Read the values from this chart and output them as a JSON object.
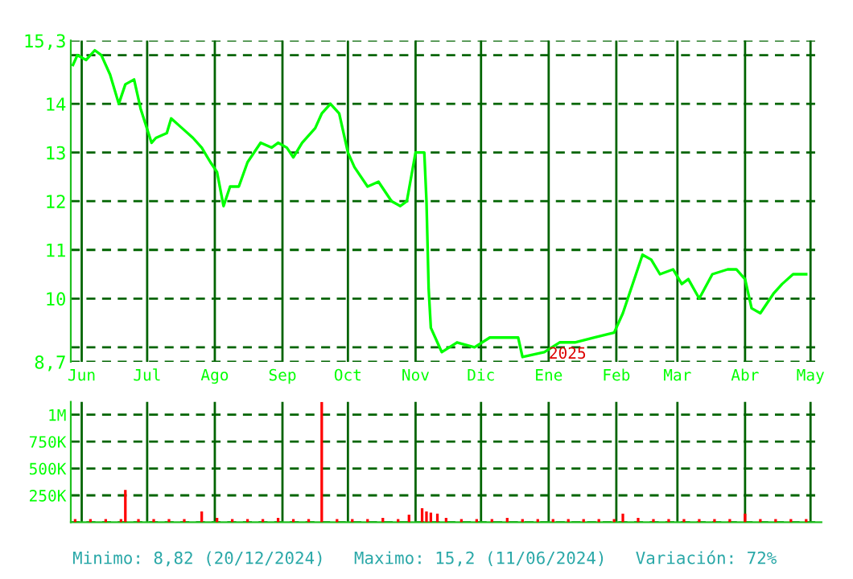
{
  "chart_data": [
    {
      "type": "line",
      "x": [
        "2024-05-28",
        "2024-05-30",
        "2024-06-03",
        "2024-06-07",
        "2024-06-10",
        "2024-06-14",
        "2024-06-18",
        "2024-06-21",
        "2024-06-25",
        "2024-06-28",
        "2024-07-03",
        "2024-07-05",
        "2024-07-10",
        "2024-07-12",
        "2024-07-17",
        "2024-07-22",
        "2024-07-26",
        "2024-07-30",
        "2024-08-02",
        "2024-08-05",
        "2024-08-08",
        "2024-08-12",
        "2024-08-16",
        "2024-08-22",
        "2024-08-27",
        "2024-08-30",
        "2024-09-03",
        "2024-09-06",
        "2024-09-10",
        "2024-09-16",
        "2024-09-19",
        "2024-09-23",
        "2024-09-27",
        "2024-10-01",
        "2024-10-04",
        "2024-10-10",
        "2024-10-15",
        "2024-10-21",
        "2024-10-25",
        "2024-10-28",
        "2024-11-01",
        "2024-11-04",
        "2024-11-05",
        "2024-11-06",
        "2024-11-07",
        "2024-11-08",
        "2024-11-11",
        "2024-11-13",
        "2024-11-20",
        "2024-11-28",
        "2024-12-05",
        "2024-12-11",
        "2024-12-18",
        "2024-12-20",
        "2024-12-30",
        "2025-01-06",
        "2025-01-13",
        "2025-01-22",
        "2025-01-31",
        "2025-02-04",
        "2025-02-10",
        "2025-02-13",
        "2025-02-17",
        "2025-02-21",
        "2025-02-27",
        "2025-03-03",
        "2025-03-06",
        "2025-03-11",
        "2025-03-17",
        "2025-03-24",
        "2025-03-28",
        "2025-04-01",
        "2025-04-04",
        "2025-04-08",
        "2025-04-14",
        "2025-04-18",
        "2025-04-23",
        "2025-04-29"
      ],
      "series": [
        {
          "color": "#00ff00",
          "values": [
            14.8,
            15.0,
            14.9,
            15.1,
            15.0,
            14.6,
            14.0,
            14.4,
            14.5,
            13.9,
            13.2,
            13.3,
            13.4,
            13.7,
            13.5,
            13.3,
            13.1,
            12.8,
            12.6,
            11.9,
            12.3,
            12.3,
            12.8,
            13.2,
            13.1,
            13.2,
            13.1,
            12.9,
            13.2,
            13.5,
            13.8,
            14.0,
            13.8,
            13.0,
            12.7,
            12.3,
            12.4,
            12.0,
            11.9,
            12.0,
            13.0,
            13.0,
            13.0,
            12.0,
            10.2,
            9.4,
            9.1,
            8.9,
            9.1,
            9.0,
            9.2,
            9.2,
            9.2,
            8.8,
            8.9,
            9.1,
            9.1,
            9.2,
            9.3,
            9.7,
            10.5,
            10.9,
            10.8,
            10.5,
            10.6,
            10.3,
            10.4,
            10.0,
            10.5,
            10.6,
            10.6,
            10.4,
            9.8,
            9.7,
            10.1,
            10.3,
            10.5,
            10.5
          ]
        }
      ],
      "xlim": [
        "2024-05-27",
        "2025-05-06"
      ],
      "ylim": [
        8.7,
        15.3
      ],
      "xticks": [
        {
          "value": "2024-06-01",
          "label": "Jun"
        },
        {
          "value": "2024-07-01",
          "label": "Jul"
        },
        {
          "value": "2024-08-01",
          "label": "Ago"
        },
        {
          "value": "2024-09-01",
          "label": "Sep"
        },
        {
          "value": "2024-10-01",
          "label": "Oct"
        },
        {
          "value": "2024-11-01",
          "label": "Nov"
        },
        {
          "value": "2024-12-01",
          "label": "Dic"
        },
        {
          "value": "2025-01-01",
          "label": "Ene"
        },
        {
          "value": "2025-02-01",
          "label": "Feb"
        },
        {
          "value": "2025-03-01",
          "label": "Mar"
        },
        {
          "value": "2025-04-01",
          "label": "Abr"
        },
        {
          "value": "2025-05-01",
          "label": "May"
        }
      ],
      "yticks": [
        {
          "value": 8.7,
          "label": "8,7"
        },
        {
          "value": 9,
          "label": null
        },
        10,
        11,
        12,
        13,
        14,
        {
          "value": 15,
          "label": null
        },
        {
          "value": 15.3,
          "label": "15,3"
        }
      ],
      "grid": true,
      "tick_labels": "xy",
      "annotations": [
        "2025"
      ]
    },
    {
      "type": "bar",
      "x": [
        "2024-05-29",
        "2024-06-05",
        "2024-06-12",
        "2024-06-19",
        "2024-06-21",
        "2024-06-27",
        "2024-07-04",
        "2024-07-11",
        "2024-07-18",
        "2024-07-26",
        "2024-08-02",
        "2024-08-09",
        "2024-08-16",
        "2024-08-23",
        "2024-08-30",
        "2024-09-06",
        "2024-09-13",
        "2024-09-19",
        "2024-09-26",
        "2024-10-03",
        "2024-10-10",
        "2024-10-17",
        "2024-10-24",
        "2024-10-29",
        "2024-11-04",
        "2024-11-06",
        "2024-11-08",
        "2024-11-11",
        "2024-11-15",
        "2024-11-22",
        "2024-11-29",
        "2024-12-06",
        "2024-12-13",
        "2024-12-20",
        "2024-12-27",
        "2025-01-03",
        "2025-01-10",
        "2025-01-17",
        "2025-01-24",
        "2025-01-31",
        "2025-02-04",
        "2025-02-11",
        "2025-02-18",
        "2025-02-25",
        "2025-03-04",
        "2025-03-11",
        "2025-03-18",
        "2025-03-25",
        "2025-04-01",
        "2025-04-08",
        "2025-04-15",
        "2025-04-22",
        "2025-04-29"
      ],
      "series": [
        {
          "color": "#ff0000",
          "values": [
            30000,
            30000,
            30000,
            30000,
            300000,
            30000,
            30000,
            30000,
            30000,
            100000,
            40000,
            30000,
            30000,
            30000,
            40000,
            30000,
            30000,
            1120000,
            30000,
            30000,
            30000,
            40000,
            30000,
            70000,
            130000,
            100000,
            90000,
            80000,
            40000,
            30000,
            30000,
            30000,
            40000,
            30000,
            30000,
            30000,
            30000,
            30000,
            30000,
            30000,
            80000,
            40000,
            30000,
            30000,
            30000,
            30000,
            30000,
            30000,
            80000,
            30000,
            30000,
            30000,
            30000
          ]
        }
      ],
      "xlim": [
        "2024-05-27",
        "2025-05-06"
      ],
      "ylim": [
        0,
        1120000
      ],
      "yticks": [
        {
          "value": 0,
          "label": null
        },
        {
          "value": 250000,
          "label": "250K"
        },
        {
          "value": 500000,
          "label": "500K"
        },
        {
          "value": 750000,
          "label": "750K"
        },
        {
          "value": 1000000,
          "label": "1M"
        }
      ],
      "grid": true,
      "tick_labels": "y",
      "annotations": [
        "Minimo: 8,82 (20/12/2024)",
        "Maximo: 15,2 (11/06/2024)",
        "Variación: 72%"
      ]
    }
  ]
}
